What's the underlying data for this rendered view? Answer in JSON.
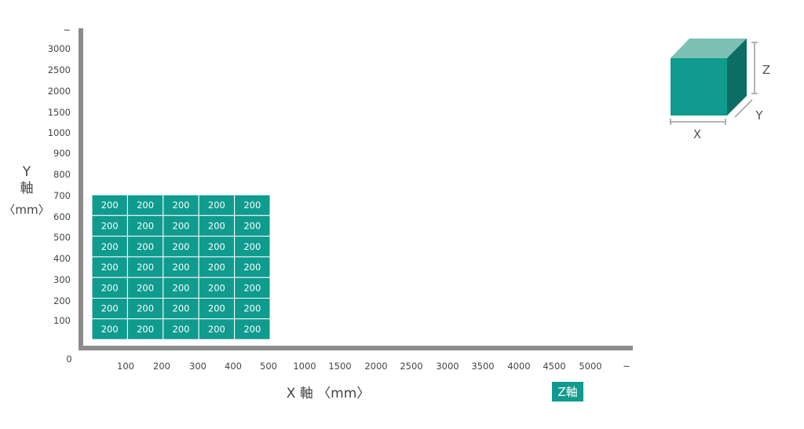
{
  "chart_data": {
    "type": "heatmap",
    "x_ticks": [
      "100",
      "200",
      "300",
      "400",
      "500",
      "1000",
      "1500",
      "2000",
      "2500",
      "3000",
      "3500",
      "4000",
      "4500",
      "5000",
      "~"
    ],
    "y_ticks": [
      "100",
      "200",
      "300",
      "400",
      "500",
      "600",
      "700",
      "800",
      "900",
      "1000",
      "1500",
      "2000",
      "2500",
      "3000",
      "~"
    ],
    "origin_label": "0",
    "cells": {
      "rows": 7,
      "cols": 5,
      "value": "200"
    },
    "xlabel": "X 軸 〈mm〉",
    "ylabel": {
      "line1": "Y",
      "line2": "軸",
      "line3": "〈mm〉"
    },
    "z_badge": "Z軸",
    "legend_cube": {
      "x": "X",
      "y": "Y",
      "z": "Z"
    },
    "colors": {
      "cell": "#0f9b8e",
      "cell_border": "#ffffff",
      "axis": "#8c8c8c",
      "cube_front": "#0f9b8e",
      "cube_top": "#7dc1b6",
      "cube_side": "#0b6d63",
      "badge": "#0f9b8e"
    }
  }
}
